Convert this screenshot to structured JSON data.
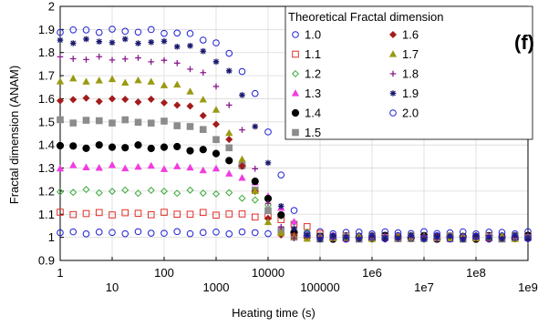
{
  "chart_data": {
    "type": "scatter",
    "panel_label": "(f)",
    "xlabel": "Heating time (s)",
    "ylabel": "Fractal dimension (ANAM)",
    "xscale": "log",
    "xlim": [
      1,
      1000000000
    ],
    "ylim": [
      0.9,
      2.0
    ],
    "grid": true,
    "legend_placement": "top-right",
    "legend_title": "Theoretical Fractal dimension",
    "x_ticks": [
      {
        "value": 1,
        "label": "1"
      },
      {
        "value": 10,
        "label": "10"
      },
      {
        "value": 100,
        "label": "100"
      },
      {
        "value": 1000,
        "label": "1000"
      },
      {
        "value": 10000,
        "label": "10000"
      },
      {
        "value": 100000,
        "label": "100000"
      },
      {
        "value": 1000000,
        "label": "1e6"
      },
      {
        "value": 10000000,
        "label": "1e7"
      },
      {
        "value": 100000000,
        "label": "1e8"
      },
      {
        "value": 1000000000,
        "label": "1e9"
      }
    ],
    "y_ticks": [
      {
        "value": 0.9,
        "label": "0.9"
      },
      {
        "value": 1.0,
        "label": "1"
      },
      {
        "value": 1.1,
        "label": "1.1"
      },
      {
        "value": 1.2,
        "label": "1.2"
      },
      {
        "value": 1.3,
        "label": "1.3"
      },
      {
        "value": 1.4,
        "label": "1.4"
      },
      {
        "value": 1.5,
        "label": "1.5"
      },
      {
        "value": 1.6,
        "label": "1.6"
      },
      {
        "value": 1.7,
        "label": "1.7"
      },
      {
        "value": 1.8,
        "label": "1.8"
      },
      {
        "value": 1.9,
        "label": "1.9"
      },
      {
        "value": 2.0,
        "label": "2"
      }
    ],
    "series": [
      {
        "name": "1.0",
        "marker": "circle",
        "color": "#1f1fd6",
        "plateau": 1.02,
        "tau": 1000000000000,
        "noise": 0.005
      },
      {
        "name": "1.1",
        "marker": "square",
        "color": "#e0302a",
        "plateau": 1.103,
        "tau": 60000,
        "noise": 0.006
      },
      {
        "name": "1.2",
        "marker": "diamond-open",
        "color": "#3aaa3a",
        "plateau": 1.199,
        "tau": 26000,
        "noise": 0.008
      },
      {
        "name": "1.3",
        "marker": "triangle",
        "color": "#f03ce0",
        "plateau": 1.305,
        "tau": 20000,
        "noise": 0.008
      },
      {
        "name": "1.4",
        "marker": "circle-filled",
        "color": "#000000",
        "plateau": 1.393,
        "tau": 12000,
        "noise": 0.008
      },
      {
        "name": "1.5",
        "marker": "square-filled",
        "color": "#8c8c8c",
        "plateau": 1.503,
        "tau": 6500,
        "noise": 0.008
      },
      {
        "name": "1.6",
        "marker": "diamond-filled",
        "color": "#a31c1c",
        "plateau": 1.597,
        "tau": 5000,
        "noise": 0.008
      },
      {
        "name": "1.7",
        "marker": "triangle-filled",
        "color": "#9a9a12",
        "plateau": 1.68,
        "tau": 4500,
        "noise": 0.008
      },
      {
        "name": "1.8",
        "marker": "plus",
        "color": "#8a1a8a",
        "plateau": 1.775,
        "tau": 6000,
        "noise": 0.008
      },
      {
        "name": "1.9",
        "marker": "star",
        "color": "#1a1a6e",
        "plateau": 1.85,
        "tau": 10000,
        "noise": 0.01
      },
      {
        "name": "2.0",
        "marker": "circle",
        "color": "#1f1fd6",
        "plateau": 1.895,
        "tau": 15000,
        "noise": 0.008
      }
    ],
    "x_sample_exponents": [
      0,
      0.25,
      0.5,
      0.75,
      1,
      1.25,
      1.5,
      1.75,
      2,
      2.25,
      2.5,
      2.75,
      3,
      3.25,
      3.5,
      3.75,
      4,
      4.25,
      4.5,
      4.75,
      5,
      5.25,
      5.5,
      5.75,
      6,
      6.25,
      6.5,
      6.75,
      7,
      7.25,
      7.5,
      7.75,
      8,
      8.25,
      8.5,
      8.75,
      9
    ],
    "asymptote": 1.0
  }
}
